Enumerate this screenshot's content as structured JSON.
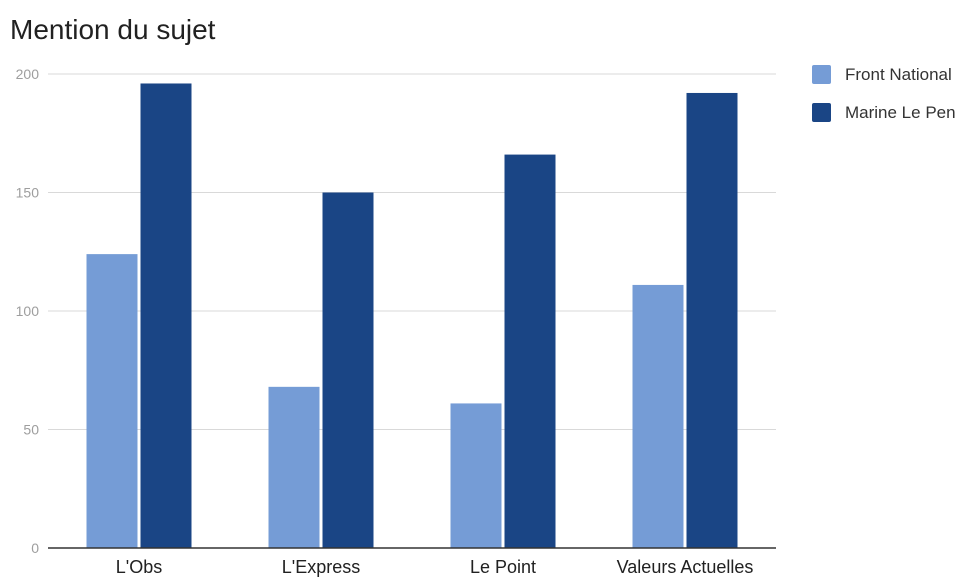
{
  "chart_data": {
    "type": "bar",
    "title": "Mention du sujet",
    "xlabel": "",
    "ylabel": "",
    "categories": [
      "L'Obs",
      "L'Express",
      "Le Point",
      "Valeurs Actuelles"
    ],
    "series": [
      {
        "name": "Front National",
        "values": [
          124,
          68,
          61,
          111
        ],
        "color": "#759cd6"
      },
      {
        "name": "Marine Le Pen",
        "values": [
          196,
          150,
          166,
          192
        ],
        "color": "#1a4585"
      }
    ],
    "ylim": [
      0,
      200
    ],
    "yticks": [
      "0",
      "50",
      "100",
      "150",
      "200"
    ],
    "ytick_values": [
      0,
      50,
      100,
      150,
      200
    ],
    "grid": true,
    "legend_position": "top-right"
  }
}
